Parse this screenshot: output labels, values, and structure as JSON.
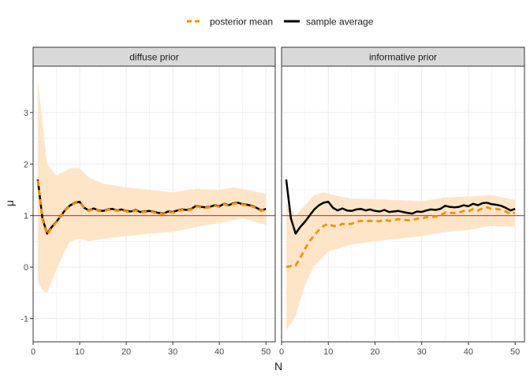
{
  "legend": {
    "position": "top",
    "items": [
      {
        "label": "posterior mean",
        "color": "#FF8C00",
        "style": "dashed"
      },
      {
        "label": "sample average",
        "color": "#000000",
        "style": "solid"
      }
    ]
  },
  "chart_data": {
    "type": "line",
    "layout": "faceted",
    "xlabel": "N",
    "ylabel": "μ",
    "xlim": [
      0,
      52
    ],
    "ylim": [
      -1.45,
      3.9
    ],
    "xticks": [
      0,
      10,
      20,
      30,
      40,
      50
    ],
    "yticks": [
      -1,
      0,
      1,
      2,
      3
    ],
    "grid": true,
    "reference_line": {
      "y": 1,
      "color": "#B22222"
    },
    "band_color": "#FFE4C4",
    "sample_average": [
      [
        1,
        1.7
      ],
      [
        2,
        0.95
      ],
      [
        3,
        0.65
      ],
      [
        4,
        0.78
      ],
      [
        5,
        0.88
      ],
      [
        6,
        1.0
      ],
      [
        7,
        1.12
      ],
      [
        8,
        1.2
      ],
      [
        9,
        1.25
      ],
      [
        10,
        1.27
      ],
      [
        11,
        1.15
      ],
      [
        12,
        1.1
      ],
      [
        13,
        1.14
      ],
      [
        14,
        1.1
      ],
      [
        15,
        1.09
      ],
      [
        16,
        1.12
      ],
      [
        17,
        1.13
      ],
      [
        18,
        1.1
      ],
      [
        19,
        1.12
      ],
      [
        20,
        1.09
      ],
      [
        21,
        1.08
      ],
      [
        22,
        1.11
      ],
      [
        23,
        1.07
      ],
      [
        24,
        1.08
      ],
      [
        25,
        1.09
      ],
      [
        26,
        1.07
      ],
      [
        27,
        1.05
      ],
      [
        28,
        1.04
      ],
      [
        29,
        1.08
      ],
      [
        30,
        1.07
      ],
      [
        31,
        1.1
      ],
      [
        32,
        1.12
      ],
      [
        33,
        1.11
      ],
      [
        34,
        1.13
      ],
      [
        35,
        1.19
      ],
      [
        36,
        1.17
      ],
      [
        37,
        1.16
      ],
      [
        38,
        1.17
      ],
      [
        39,
        1.2
      ],
      [
        40,
        1.18
      ],
      [
        41,
        1.23
      ],
      [
        42,
        1.2
      ],
      [
        43,
        1.24
      ],
      [
        44,
        1.25
      ],
      [
        45,
        1.22
      ],
      [
        46,
        1.21
      ],
      [
        47,
        1.19
      ],
      [
        48,
        1.15
      ],
      [
        49,
        1.1
      ],
      [
        50,
        1.13
      ]
    ],
    "facets": [
      {
        "title": "diffuse prior",
        "posterior_mean": [
          [
            1,
            1.68
          ],
          [
            2,
            0.92
          ],
          [
            3,
            0.63
          ],
          [
            4,
            0.76
          ],
          [
            5,
            0.87
          ],
          [
            6,
            0.99
          ],
          [
            7,
            1.11
          ],
          [
            8,
            1.19
          ],
          [
            9,
            1.24
          ],
          [
            10,
            1.26
          ],
          [
            11,
            1.14
          ],
          [
            12,
            1.09
          ],
          [
            13,
            1.13
          ],
          [
            14,
            1.09
          ],
          [
            15,
            1.08
          ],
          [
            16,
            1.11
          ],
          [
            17,
            1.12
          ],
          [
            18,
            1.09
          ],
          [
            19,
            1.11
          ],
          [
            20,
            1.08
          ],
          [
            21,
            1.07
          ],
          [
            22,
            1.1
          ],
          [
            23,
            1.06
          ],
          [
            24,
            1.07
          ],
          [
            25,
            1.08
          ],
          [
            26,
            1.06
          ],
          [
            27,
            1.04
          ],
          [
            28,
            1.03
          ],
          [
            29,
            1.07
          ],
          [
            30,
            1.06
          ],
          [
            31,
            1.09
          ],
          [
            32,
            1.11
          ],
          [
            33,
            1.1
          ],
          [
            34,
            1.12
          ],
          [
            35,
            1.18
          ],
          [
            36,
            1.16
          ],
          [
            37,
            1.15
          ],
          [
            38,
            1.16
          ],
          [
            39,
            1.19
          ],
          [
            40,
            1.17
          ],
          [
            41,
            1.22
          ],
          [
            42,
            1.19
          ],
          [
            43,
            1.23
          ],
          [
            44,
            1.24
          ],
          [
            45,
            1.21
          ],
          [
            46,
            1.2
          ],
          [
            47,
            1.18
          ],
          [
            48,
            1.14
          ],
          [
            49,
            1.09
          ],
          [
            50,
            1.12
          ]
        ],
        "band_upper": [
          [
            1,
            3.65
          ],
          [
            3,
            2.0
          ],
          [
            5,
            1.78
          ],
          [
            8,
            1.92
          ],
          [
            10,
            1.92
          ],
          [
            12,
            1.74
          ],
          [
            15,
            1.62
          ],
          [
            20,
            1.55
          ],
          [
            25,
            1.5
          ],
          [
            30,
            1.45
          ],
          [
            35,
            1.52
          ],
          [
            40,
            1.5
          ],
          [
            43,
            1.55
          ],
          [
            46,
            1.5
          ],
          [
            50,
            1.42
          ]
        ],
        "band_lower": [
          [
            1,
            -0.28
          ],
          [
            2,
            -0.45
          ],
          [
            3,
            -0.5
          ],
          [
            5,
            -0.05
          ],
          [
            7,
            0.35
          ],
          [
            8,
            0.5
          ],
          [
            10,
            0.55
          ],
          [
            12,
            0.5
          ],
          [
            15,
            0.55
          ],
          [
            20,
            0.6
          ],
          [
            25,
            0.65
          ],
          [
            30,
            0.68
          ],
          [
            35,
            0.78
          ],
          [
            40,
            0.85
          ],
          [
            45,
            0.95
          ],
          [
            50,
            0.82
          ]
        ]
      },
      {
        "title": "informative prior",
        "posterior_mean": [
          [
            1,
            0.0
          ],
          [
            2,
            0.02
          ],
          [
            3,
            0.03
          ],
          [
            4,
            0.18
          ],
          [
            5,
            0.35
          ],
          [
            6,
            0.5
          ],
          [
            7,
            0.62
          ],
          [
            8,
            0.72
          ],
          [
            9,
            0.8
          ],
          [
            10,
            0.84
          ],
          [
            11,
            0.8
          ],
          [
            12,
            0.79
          ],
          [
            13,
            0.84
          ],
          [
            14,
            0.83
          ],
          [
            15,
            0.84
          ],
          [
            16,
            0.88
          ],
          [
            17,
            0.9
          ],
          [
            18,
            0.89
          ],
          [
            19,
            0.9
          ],
          [
            20,
            0.89
          ],
          [
            21,
            0.89
          ],
          [
            22,
            0.92
          ],
          [
            23,
            0.9
          ],
          [
            24,
            0.91
          ],
          [
            25,
            0.93
          ],
          [
            26,
            0.92
          ],
          [
            27,
            0.91
          ],
          [
            28,
            0.91
          ],
          [
            29,
            0.94
          ],
          [
            30,
            0.94
          ],
          [
            31,
            0.97
          ],
          [
            32,
            0.98
          ],
          [
            33,
            0.98
          ],
          [
            34,
            1.0
          ],
          [
            35,
            1.06
          ],
          [
            36,
            1.05
          ],
          [
            37,
            1.05
          ],
          [
            38,
            1.06
          ],
          [
            39,
            1.09
          ],
          [
            40,
            1.08
          ],
          [
            41,
            1.13
          ],
          [
            42,
            1.1
          ],
          [
            43,
            1.14
          ],
          [
            44,
            1.16
          ],
          [
            45,
            1.13
          ],
          [
            46,
            1.13
          ],
          [
            47,
            1.11
          ],
          [
            48,
            1.08
          ],
          [
            49,
            1.03
          ],
          [
            50,
            1.06
          ]
        ],
        "band_upper": [
          [
            1,
            1.25
          ],
          [
            3,
            1.0
          ],
          [
            5,
            1.2
          ],
          [
            7,
            1.4
          ],
          [
            9,
            1.45
          ],
          [
            12,
            1.38
          ],
          [
            15,
            1.33
          ],
          [
            20,
            1.32
          ],
          [
            25,
            1.3
          ],
          [
            30,
            1.28
          ],
          [
            35,
            1.35
          ],
          [
            40,
            1.37
          ],
          [
            45,
            1.4
          ],
          [
            50,
            1.3
          ]
        ],
        "band_lower": [
          [
            1,
            -1.22
          ],
          [
            2,
            -1.1
          ],
          [
            3,
            -0.95
          ],
          [
            5,
            -0.35
          ],
          [
            7,
            0.02
          ],
          [
            10,
            0.3
          ],
          [
            15,
            0.44
          ],
          [
            20,
            0.5
          ],
          [
            25,
            0.55
          ],
          [
            30,
            0.6
          ],
          [
            35,
            0.68
          ],
          [
            40,
            0.72
          ],
          [
            45,
            0.8
          ],
          [
            50,
            0.78
          ]
        ]
      }
    ]
  }
}
